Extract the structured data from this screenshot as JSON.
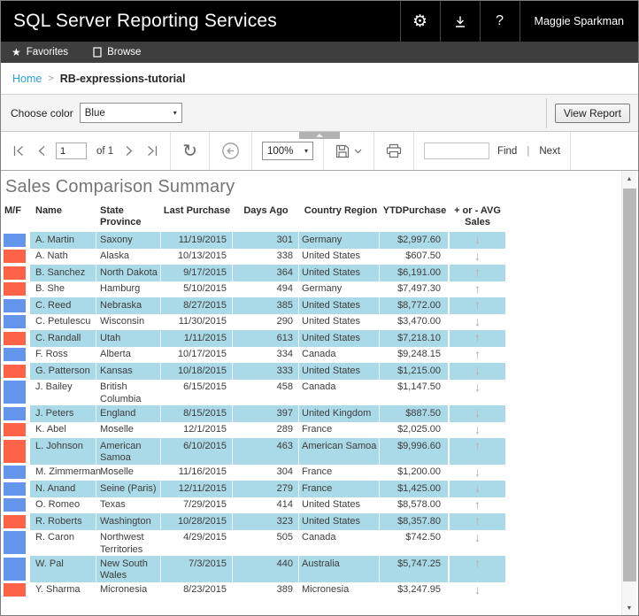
{
  "app": {
    "title": "SQL Server Reporting Services",
    "user": "Maggie Sparkman"
  },
  "nav": {
    "favorites": "Favorites",
    "browse": "Browse"
  },
  "breadcrumb": {
    "home": "Home",
    "separator": ">",
    "current": "RB-expressions-tutorial"
  },
  "params": {
    "label": "Choose color",
    "value": "Blue",
    "view_report": "View Report"
  },
  "toolbar": {
    "page_value": "1",
    "of_label": "of 1",
    "zoom_value": "100%",
    "find_label": "Find",
    "pipe": "|",
    "next_label": "Next"
  },
  "report": {
    "title": "Sales Comparison Summary",
    "columns": {
      "mf": "M/F",
      "name": "Name",
      "state": "State Province",
      "last": "Last Purchase",
      "days": "Days Ago",
      "country": "Country Region",
      "ytd": "YTDPurchase",
      "trend": "+ or - AVG Sales"
    },
    "rows": [
      {
        "mf_color": "blue",
        "name": "A. Martin",
        "state": "Saxony",
        "last_purchase": "11/19/2015",
        "days_ago": "301",
        "country": "Germany",
        "ytd": "$2,997.60",
        "trend": "down"
      },
      {
        "mf_color": "red",
        "name": "A. Nath",
        "state": "Alaska",
        "last_purchase": "10/13/2015",
        "days_ago": "338",
        "country": "United States",
        "ytd": "$607.50",
        "trend": "down"
      },
      {
        "mf_color": "red",
        "name": "B. Sanchez",
        "state": "North Dakota",
        "last_purchase": "9/17/2015",
        "days_ago": "364",
        "country": "United States",
        "ytd": "$6,191.00",
        "trend": "up"
      },
      {
        "mf_color": "red",
        "name": "B. She",
        "state": "Hamburg",
        "last_purchase": "5/10/2015",
        "days_ago": "494",
        "country": "Germany",
        "ytd": "$7,497.30",
        "trend": "up"
      },
      {
        "mf_color": "blue",
        "name": "C. Reed",
        "state": "Nebraska",
        "last_purchase": "8/27/2015",
        "days_ago": "385",
        "country": "United States",
        "ytd": "$8,772.00",
        "trend": "up"
      },
      {
        "mf_color": "blue",
        "name": "C. Petulescu",
        "state": "Wisconsin",
        "last_purchase": "11/30/2015",
        "days_ago": "290",
        "country": "United States",
        "ytd": "$3,470.00",
        "trend": "down"
      },
      {
        "mf_color": "red",
        "name": "C. Randall",
        "state": "Utah",
        "last_purchase": "1/11/2015",
        "days_ago": "613",
        "country": "United States",
        "ytd": "$7,218.10",
        "trend": "up"
      },
      {
        "mf_color": "blue",
        "name": "F. Ross",
        "state": "Alberta",
        "last_purchase": "10/17/2015",
        "days_ago": "334",
        "country": "Canada",
        "ytd": "$9,248.15",
        "trend": "up"
      },
      {
        "mf_color": "red",
        "name": "G. Patterson",
        "state": "Kansas",
        "last_purchase": "10/18/2015",
        "days_ago": "333",
        "country": "United States",
        "ytd": "$1,215.00",
        "trend": "down"
      },
      {
        "mf_color": "blue",
        "name": "J. Bailey",
        "state": "British Columbia",
        "last_purchase": "6/15/2015",
        "days_ago": "458",
        "country": "Canada",
        "ytd": "$1,147.50",
        "trend": "down"
      },
      {
        "mf_color": "blue",
        "name": "J. Peters",
        "state": "England",
        "last_purchase": "8/15/2015",
        "days_ago": "397",
        "country": "United Kingdom",
        "ytd": "$887.50",
        "trend": "down"
      },
      {
        "mf_color": "red",
        "name": "K. Abel",
        "state": "Moselle",
        "last_purchase": "12/1/2015",
        "days_ago": "289",
        "country": "France",
        "ytd": "$2,025.00",
        "trend": "down"
      },
      {
        "mf_color": "red",
        "name": "L. Johnson",
        "state": "American Samoa",
        "last_purchase": "6/10/2015",
        "days_ago": "463",
        "country": "American Samoa",
        "ytd": "$9,996.60",
        "trend": "up"
      },
      {
        "mf_color": "blue",
        "name": "M. Zimmerman",
        "state": "Moselle",
        "last_purchase": "11/16/2015",
        "days_ago": "304",
        "country": "France",
        "ytd": "$1,200.00",
        "trend": "down"
      },
      {
        "mf_color": "blue",
        "name": "N. Anand",
        "state": "Seine (Paris)",
        "last_purchase": "12/11/2015",
        "days_ago": "279",
        "country": "France",
        "ytd": "$1,425.00",
        "trend": "down"
      },
      {
        "mf_color": "blue",
        "name": "O. Romeo",
        "state": "Texas",
        "last_purchase": "7/29/2015",
        "days_ago": "414",
        "country": "United States",
        "ytd": "$8,578.00",
        "trend": "up"
      },
      {
        "mf_color": "red",
        "name": "R. Roberts",
        "state": "Washington",
        "last_purchase": "10/28/2015",
        "days_ago": "323",
        "country": "United States",
        "ytd": "$8,357.80",
        "trend": "up"
      },
      {
        "mf_color": "blue",
        "name": "R. Caron",
        "state": "Northwest Territories",
        "last_purchase": "4/29/2015",
        "days_ago": "505",
        "country": "Canada",
        "ytd": "$742.50",
        "trend": "down"
      },
      {
        "mf_color": "blue",
        "name": "W. Pal",
        "state": "New South Wales",
        "last_purchase": "7/3/2015",
        "days_ago": "440",
        "country": "Australia",
        "ytd": "$5,747.25",
        "trend": "up"
      },
      {
        "mf_color": "red",
        "name": "Y. Sharma",
        "state": "Micronesia",
        "last_purchase": "8/23/2015",
        "days_ago": "389",
        "country": "Micronesia",
        "ytd": "$3,247.95",
        "trend": "down"
      }
    ]
  },
  "icons": {
    "up_arrow": "↑",
    "down_arrow": "↓",
    "gear": "⚙",
    "help": "?",
    "star": "★",
    "caret_down": "▾",
    "scroll_up": "▲",
    "scroll_down": "▼",
    "refresh": "↻"
  },
  "colors": {
    "male_blue": "#6495ed",
    "female_red": "#ff6347",
    "row_shade": "#aad9e7"
  }
}
